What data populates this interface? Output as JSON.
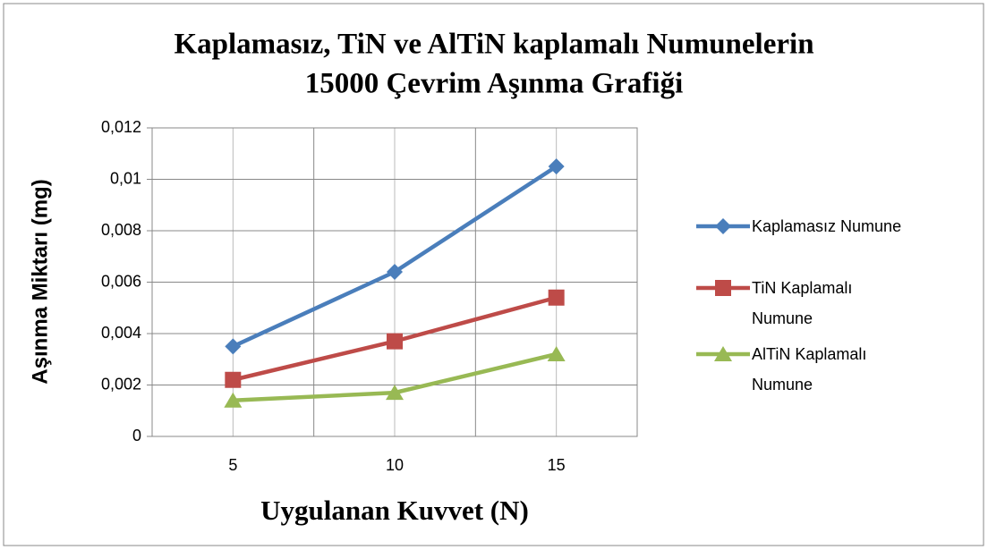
{
  "chart_data": {
    "type": "line",
    "title": [
      "Kaplamasız, TiN ve AlTiN kaplamalı Numunelerin",
      "15000 Çevrim Aşınma Grafiği"
    ],
    "x_label": "Uygulanan Kuvvet (N)",
    "y_label": "Aşınma Miktarı (mg)",
    "categories": [
      "5",
      "10",
      "15"
    ],
    "series": [
      {
        "name": "Kaplamasız Numune",
        "color": "#4a7ebb",
        "marker": "diamond",
        "values": [
          0.0035,
          0.0064,
          0.0105
        ]
      },
      {
        "name": "TiN Kaplamalı Numune",
        "color": "#be4b48",
        "marker": "square",
        "values": [
          0.0022,
          0.0037,
          0.0054
        ]
      },
      {
        "name": "AlTiN Kaplamalı Numune",
        "color": "#98b954",
        "marker": "triangle",
        "values": [
          0.0014,
          0.0017,
          0.0032
        ]
      }
    ],
    "ylim": [
      0,
      0.012
    ],
    "yticks": [
      0,
      {
        "value": 0.002,
        "label": "0,002"
      },
      {
        "value": 0.004,
        "label": "0,004"
      },
      {
        "value": 0.006,
        "label": "0,006"
      },
      {
        "value": 0.008,
        "label": "0,008"
      },
      {
        "value": 0.01,
        "label": "0,01"
      },
      {
        "value": 0.012,
        "label": "0,012"
      }
    ],
    "grid": true,
    "legend": "right"
  }
}
